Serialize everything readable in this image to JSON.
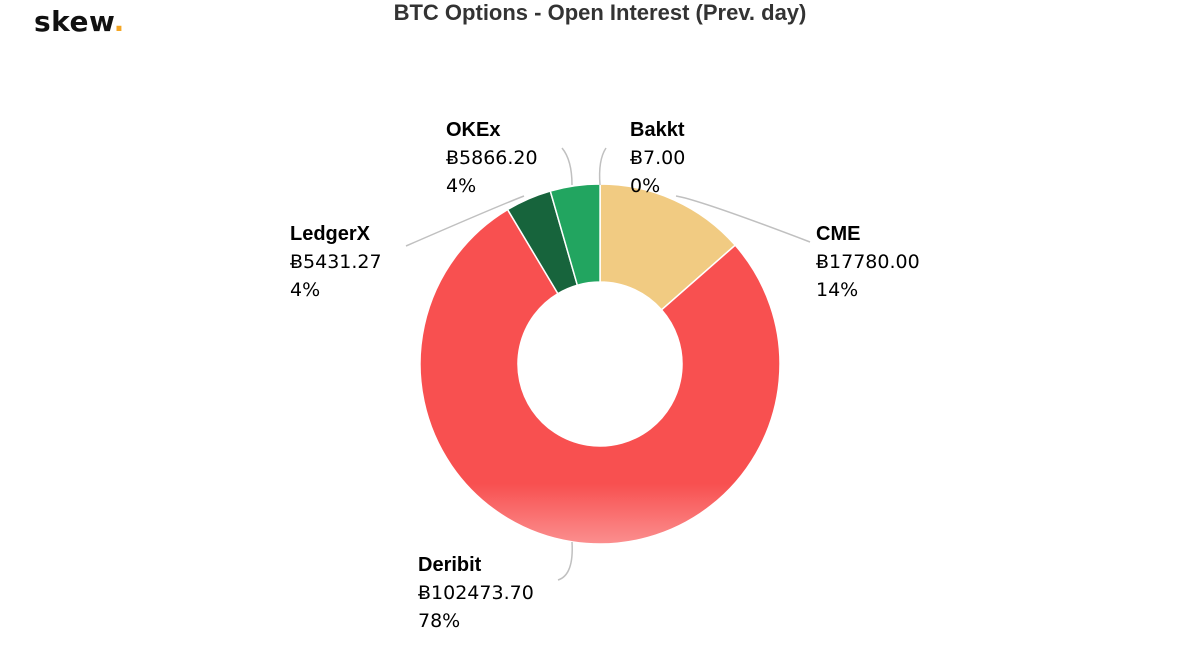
{
  "brand": {
    "logo_text": "skew",
    "logo_dot": ".",
    "dot_color": "#f5a623"
  },
  "chart_data": {
    "type": "pie",
    "variant": "donut",
    "title": "BTC Options - Open Interest (Prev. day)",
    "currency_symbol": "Ƀ",
    "slices": [
      {
        "name": "Bakkt",
        "value": 7.0,
        "value_label": "Ƀ7.00",
        "percent_label": "0%",
        "color": "#e8c676"
      },
      {
        "name": "CME",
        "value": 17780.0,
        "value_label": "Ƀ17780.00",
        "percent_label": "14%",
        "color": "#f1cb82"
      },
      {
        "name": "Deribit",
        "value": 102473.7,
        "value_label": "Ƀ102473.70",
        "percent_label": "78%",
        "color": "#f85050"
      },
      {
        "name": "LedgerX",
        "value": 5431.27,
        "value_label": "Ƀ5431.27",
        "percent_label": "4%",
        "color": "#17643c"
      },
      {
        "name": "OKEx",
        "value": 5866.2,
        "value_label": "Ƀ5866.20",
        "percent_label": "4%",
        "color": "#22a560"
      }
    ],
    "legend": "none",
    "labels": "outside-with-connectors"
  }
}
